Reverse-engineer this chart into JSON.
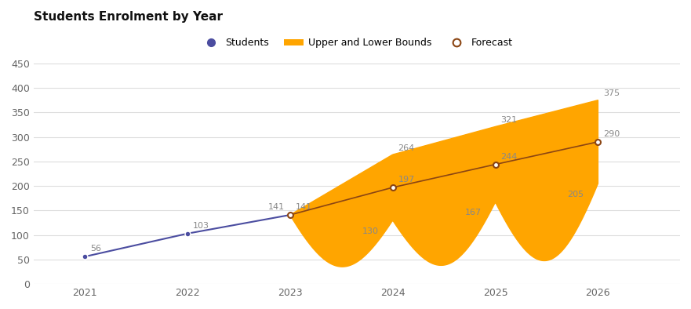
{
  "title": "Students Enrolment by Year",
  "years_historical": [
    2021,
    2022,
    2023
  ],
  "values_historical": [
    56,
    103,
    141
  ],
  "years_forecast": [
    2023,
    2024,
    2025,
    2026
  ],
  "values_forecast": [
    141,
    197,
    244,
    290
  ],
  "upper_bounds": [
    141,
    264,
    321,
    375
  ],
  "lower_bounds": [
    141,
    130,
    167,
    205
  ],
  "dip_values": [
    0,
    0
  ],
  "student_color": "#4B4DA0",
  "forecast_color": "#8B4513",
  "bound_color": "#FFA500",
  "background_color": "#FFFFFF",
  "grid_color": "#DDDDDD",
  "label_color": "#888888",
  "title_color": "#111111",
  "ylim": [
    0,
    460
  ],
  "yticks": [
    0,
    50,
    100,
    150,
    200,
    250,
    300,
    350,
    400,
    450
  ],
  "legend_labels": [
    "Students",
    "Upper and Lower Bounds",
    "Forecast"
  ],
  "xlim": [
    2020.5,
    2026.8
  ]
}
